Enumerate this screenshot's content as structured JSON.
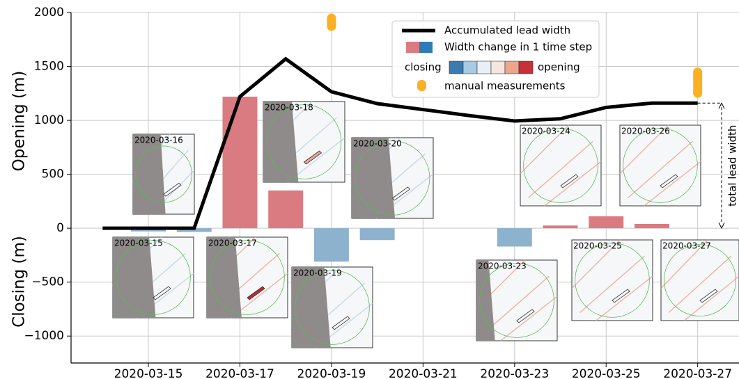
{
  "chart_data": {
    "type": "combo",
    "y_label_top": "Opening (m)",
    "y_label_bottom": "Closing (m)",
    "xlim": [
      "2020-03-13T07:27:00Z",
      "2020-03-27T21:40:00Z"
    ],
    "xticks": [
      "2020-03-15",
      "2020-03-17",
      "2020-03-19",
      "2020-03-21",
      "2020-03-23",
      "2020-03-25",
      "2020-03-27"
    ],
    "ylim": [
      -1250,
      2000
    ],
    "yticks": [
      {
        "value": -1000,
        "label": "−1000"
      },
      {
        "value": -500,
        "label": "−500"
      },
      0,
      500,
      1000,
      1500,
      2000
    ],
    "grid": true,
    "series": [
      {
        "name": "Accumulated lead width",
        "type": "line",
        "color": "#000000",
        "x": [
          "2020-03-14",
          "2020-03-15",
          "2020-03-16",
          "2020-03-17",
          "2020-03-18",
          "2020-03-19",
          "2020-03-20",
          "2020-03-21",
          "2020-03-22",
          "2020-03-23",
          "2020-03-24",
          "2020-03-25",
          "2020-03-26",
          "2020-03-27"
        ],
        "values": [
          0,
          0,
          0,
          1220,
          1570,
          1265,
          1155,
          1100,
          1045,
          994,
          1015,
          1120,
          1160,
          1160
        ]
      },
      {
        "name": "Width change in 1 time step",
        "type": "bar",
        "positive_color": "#da7b82",
        "negative_color": "#8db2ce",
        "x": [
          "2020-03-15",
          "2020-03-16",
          "2020-03-17",
          "2020-03-18",
          "2020-03-19",
          "2020-03-20",
          "2020-03-23",
          "2020-03-24",
          "2020-03-25",
          "2020-03-26"
        ],
        "values": [
          -30,
          -35,
          1220,
          350,
          -310,
          -110,
          -170,
          25,
          110,
          40
        ]
      },
      {
        "name": "manual measurements",
        "type": "range",
        "color": "#fbb021",
        "x": [
          "2020-03-19",
          "2020-03-27"
        ],
        "low": [
          1830,
          1210
        ],
        "high": [
          1990,
          1490
        ]
      }
    ],
    "colorbar": {
      "left_label": "closing",
      "right_label": "opening",
      "colors": [
        "#3a7bb0",
        "#a6cbe2",
        "#e8eff5",
        "#f7e6e0",
        "#eea58b",
        "#c8303a"
      ]
    },
    "annotation": "total lead width",
    "insets": [
      "2020-03-16",
      "2020-03-18",
      "2020-03-20",
      "2020-03-24",
      "2020-03-26",
      "2020-03-15",
      "2020-03-17",
      "2020-03-19",
      "2020-03-23",
      "2020-03-25",
      "2020-03-27"
    ]
  }
}
